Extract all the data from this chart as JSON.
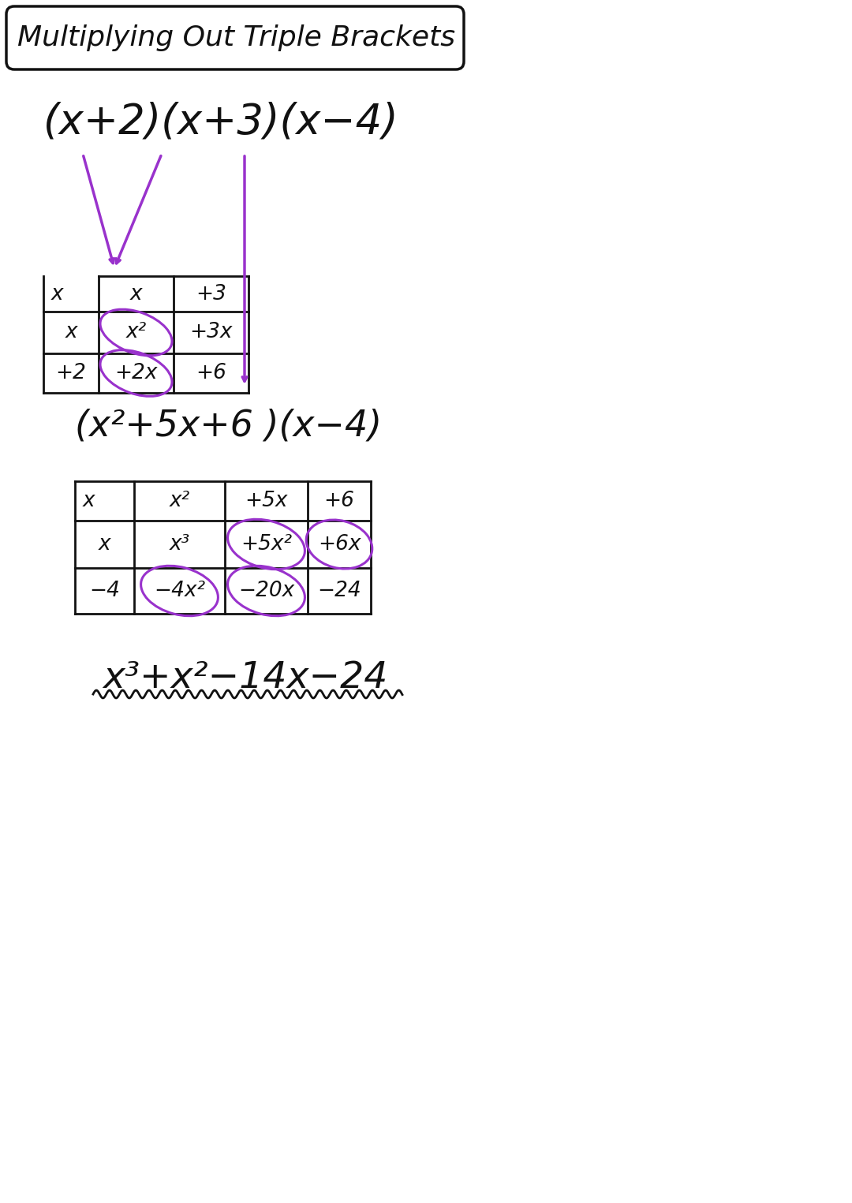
{
  "bg_color": "#ffffff",
  "title_text": "Multiplying Out Triple Brackets",
  "purple": "#9932CC",
  "black": "#111111",
  "problem_text": "(x+2)(x+3)(x−4)",
  "intermediate_text": "(x²+5x+6 )(x−4)",
  "final_text": "x³+x²−14x−24",
  "table1_headers": [
    "x",
    "+3"
  ],
  "table1_row0": [
    "x²",
    "+3x"
  ],
  "table1_row1": [
    "+2x",
    "+6"
  ],
  "table1_rowlabels": [
    "x",
    "+2"
  ],
  "table2_headers": [
    "x²",
    "+5x",
    "+6"
  ],
  "table2_row0": [
    "x³",
    "+5x²",
    "+6x"
  ],
  "table2_row1": [
    "−4x²",
    "−20x",
    "−24"
  ],
  "table2_rowlabels": [
    "x",
    "−4"
  ]
}
